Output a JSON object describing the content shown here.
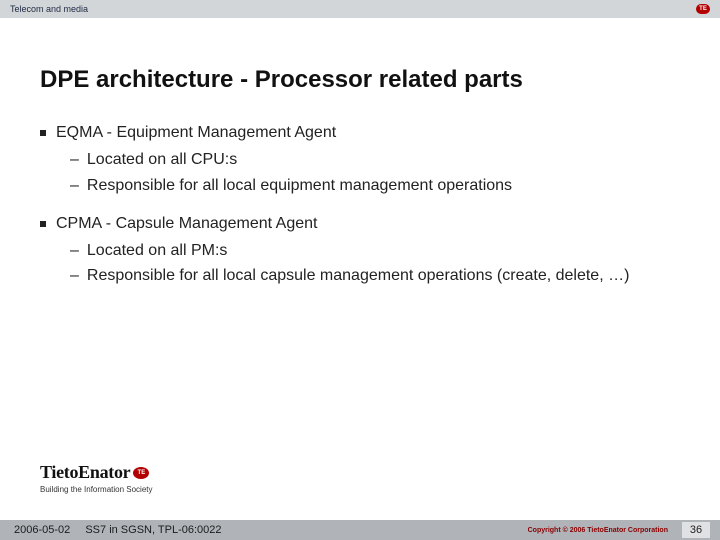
{
  "topbar": {
    "label": "Telecom and media",
    "badge": "TE"
  },
  "title": "DPE architecture - Processor related parts",
  "bullets": [
    {
      "text": "EQMA - Equipment Management Agent",
      "sub": [
        "Located on all CPU:s",
        "Responsible for all local equipment management operations"
      ]
    },
    {
      "text": "CPMA - Capsule Management Agent",
      "sub": [
        "Located on all PM:s",
        "Responsible for all local capsule management operations (create, delete, …)"
      ]
    }
  ],
  "logo": {
    "name": "TietoEnator",
    "badge": "TE",
    "tagline": "Building the Information Society"
  },
  "footer": {
    "date": "2006-05-02",
    "doc": "SS7 in SGSN, TPL-06:0022",
    "copyright": "Copyright © 2006 TietoEnator Corporation",
    "page": "36"
  }
}
